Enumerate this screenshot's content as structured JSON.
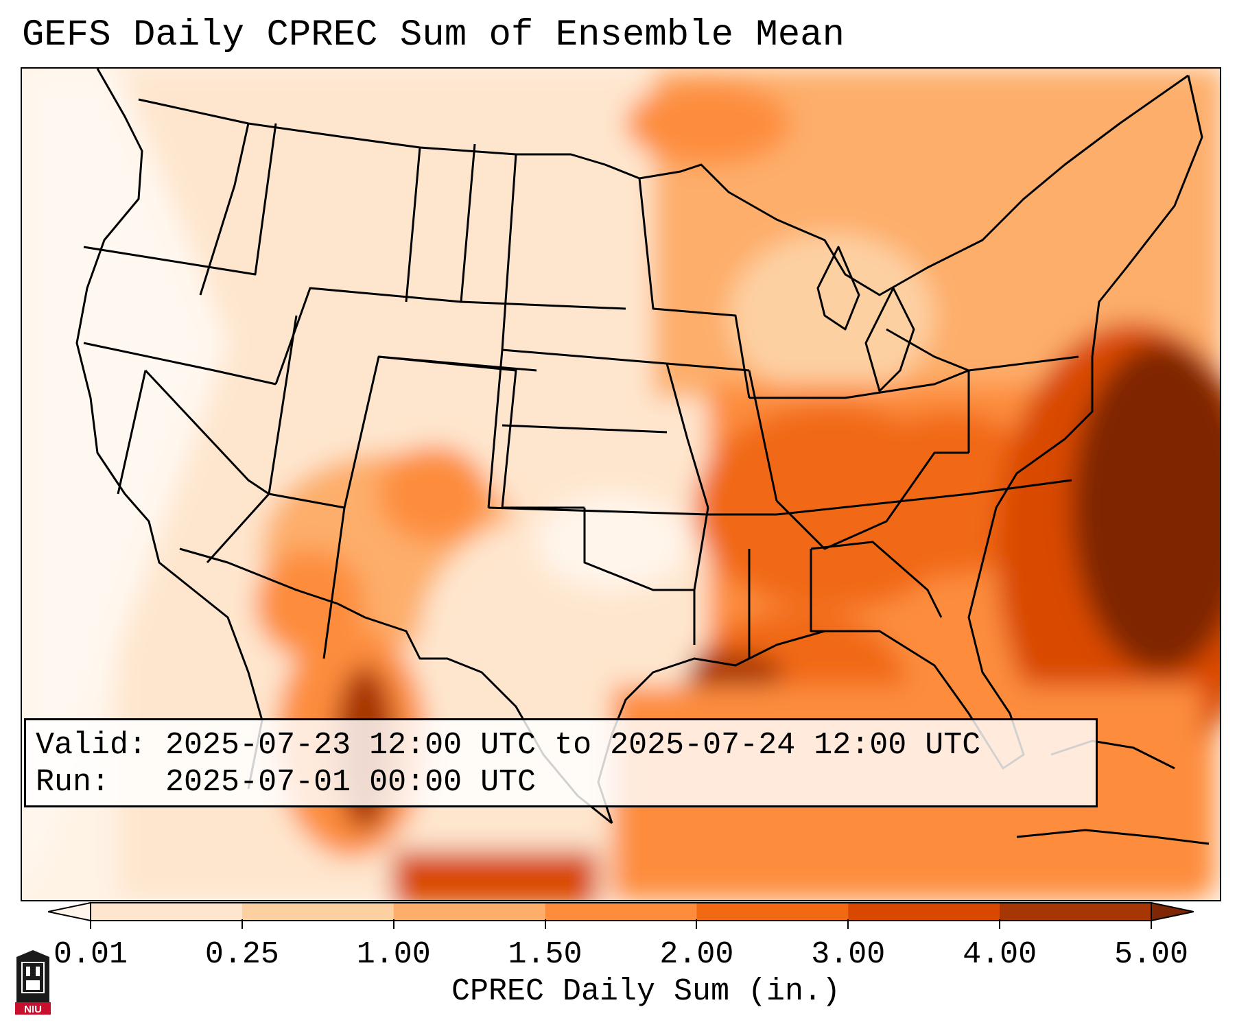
{
  "title": "GEFS Daily CPREC Sum of Ensemble Mean",
  "info": {
    "valid_label": "Valid:",
    "valid_value": "2025-07-23 12:00 UTC to 2025-07-24 12:00 UTC",
    "run_label": "Run:",
    "run_value": "2025-07-01 00:00 UTC"
  },
  "colorbar": {
    "label": "CPREC Daily Sum (in.)",
    "ticks": [
      "0.01",
      "0.25",
      "1.00",
      "1.50",
      "2.00",
      "3.00",
      "4.00",
      "5.00"
    ],
    "colors": [
      "#fff5eb",
      "#fee6ce",
      "#fdd0a2",
      "#fdae6b",
      "#fd8d3c",
      "#f16913",
      "#d94801",
      "#a63603",
      "#7f2704"
    ]
  },
  "logo": {
    "text": "NIU",
    "icon": "niu-tower-logo-icon"
  },
  "map": {
    "region": "CONUS",
    "icon": "precipitation-map-icon"
  }
}
